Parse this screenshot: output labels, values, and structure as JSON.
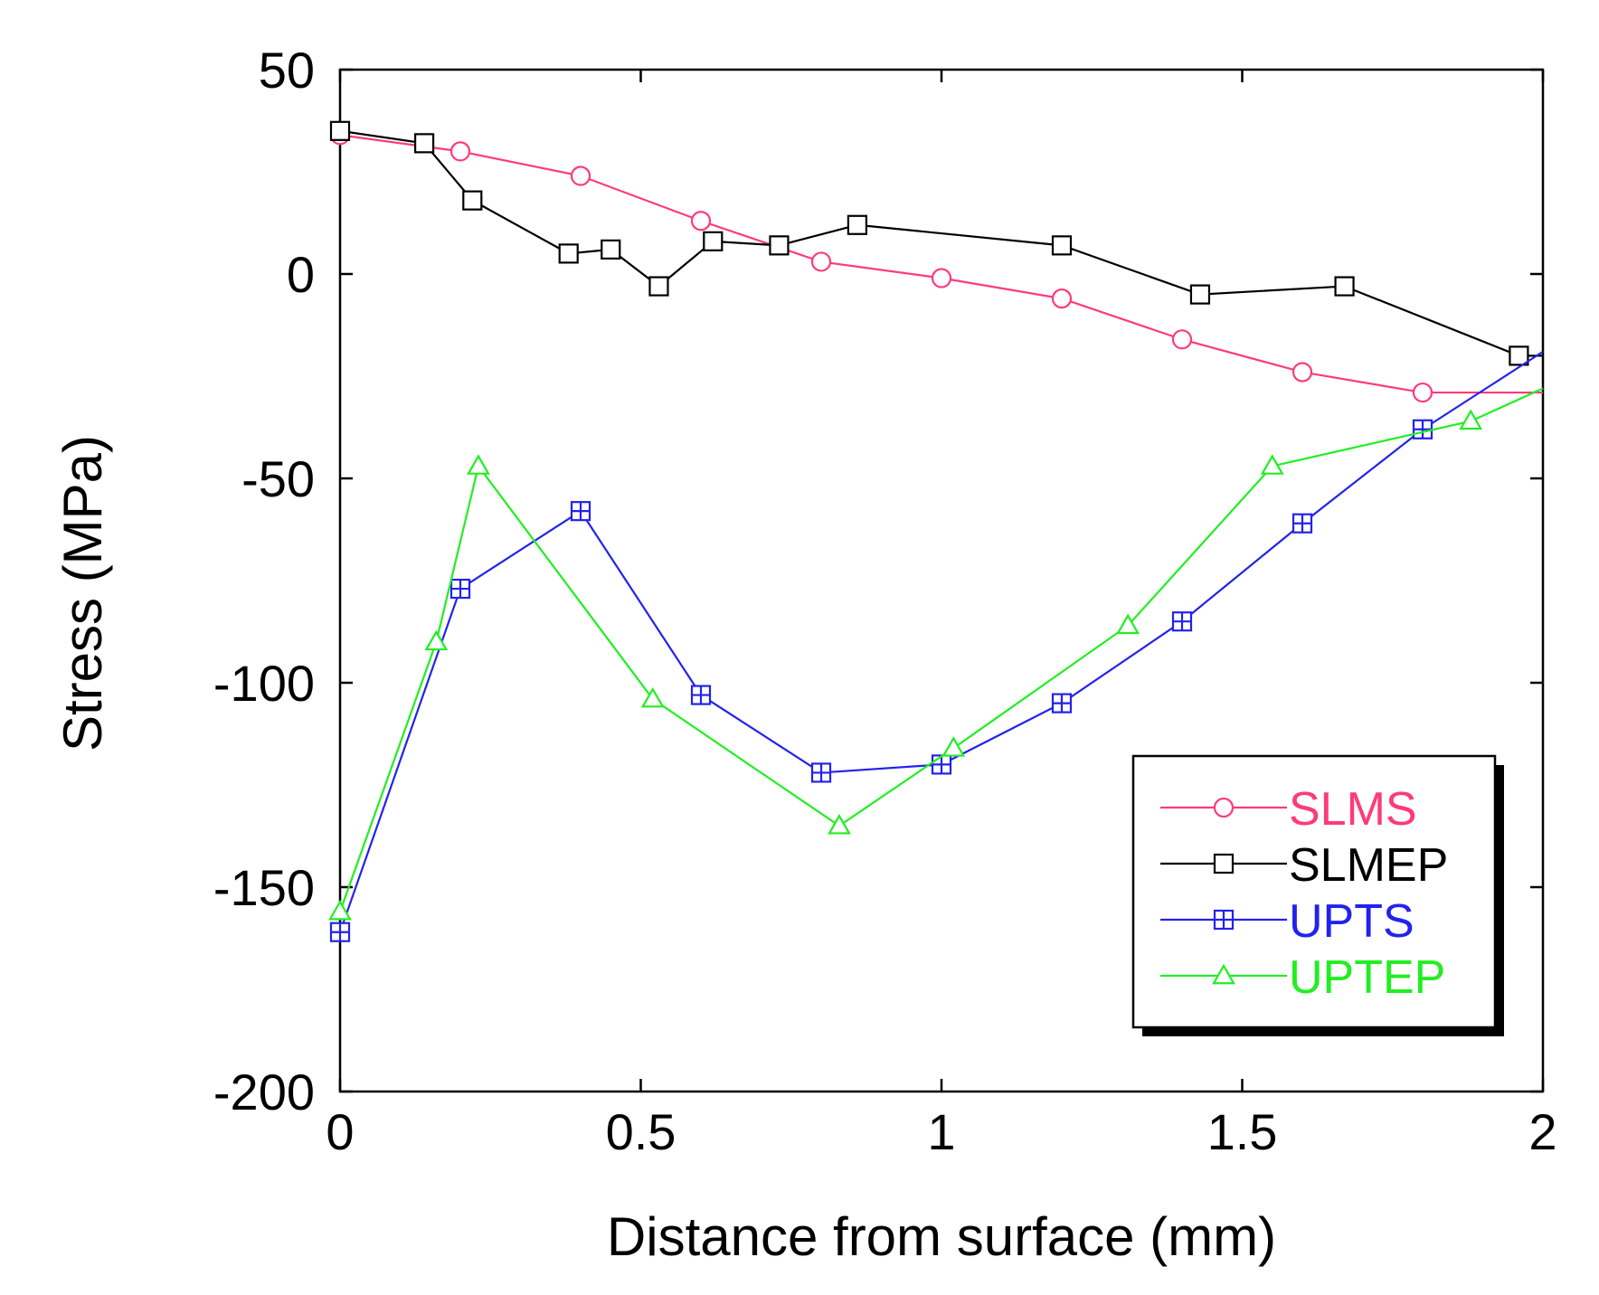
{
  "chart_data": {
    "type": "line",
    "title": "",
    "xlabel": "Distance from surface (mm)",
    "ylabel": "Stress (MPa)",
    "xlim": [
      0,
      2
    ],
    "ylim": [
      -200,
      50
    ],
    "xticks": [
      0,
      0.5,
      1,
      1.5,
      2
    ],
    "xtick_labels": [
      "0",
      "0.5",
      "1",
      "1.5",
      "2"
    ],
    "yticks": [
      50,
      0,
      -50,
      -100,
      -150,
      -200
    ],
    "ytick_labels": [
      "50",
      "0",
      "-50",
      "-100",
      "-150",
      "-200"
    ],
    "grid": false,
    "legend_position": "bottom-right",
    "series": [
      {
        "name": "SLMS",
        "color": "#ff3a7a",
        "marker": "circle",
        "x": [
          0,
          0.2,
          0.4,
          0.6,
          0.8,
          1.0,
          1.2,
          1.4,
          1.6,
          1.8,
          2.0
        ],
        "y": [
          34,
          30,
          24,
          13,
          3,
          -1,
          -6,
          -16,
          -24,
          -29,
          -29
        ]
      },
      {
        "name": "SLMEP",
        "color": "#000000",
        "marker": "square",
        "x": [
          0,
          0.14,
          0.22,
          0.38,
          0.45,
          0.53,
          0.62,
          0.73,
          0.86,
          1.2,
          1.43,
          1.67,
          1.96,
          2.0
        ],
        "y": [
          35,
          32,
          18,
          5,
          6,
          -3,
          8,
          7,
          12,
          7,
          -5,
          -3,
          -20,
          -20
        ]
      },
      {
        "name": "UPTS",
        "color": "#2222ee",
        "marker": "square-plus",
        "x": [
          0,
          0.2,
          0.4,
          0.6,
          0.8,
          1.0,
          1.2,
          1.4,
          1.6,
          1.8,
          2.0
        ],
        "y": [
          -161,
          -77,
          -58,
          -103,
          -122,
          -120,
          -105,
          -85,
          -61,
          -38,
          -19
        ]
      },
      {
        "name": "UPTEP",
        "color": "#22ee22",
        "marker": "triangle",
        "x": [
          0,
          0.16,
          0.23,
          0.52,
          0.83,
          1.02,
          1.31,
          1.55,
          1.88,
          2.0
        ],
        "y": [
          -156,
          -90,
          -47,
          -104,
          -135,
          -116,
          -86,
          -47,
          -36,
          -28
        ]
      }
    ]
  }
}
